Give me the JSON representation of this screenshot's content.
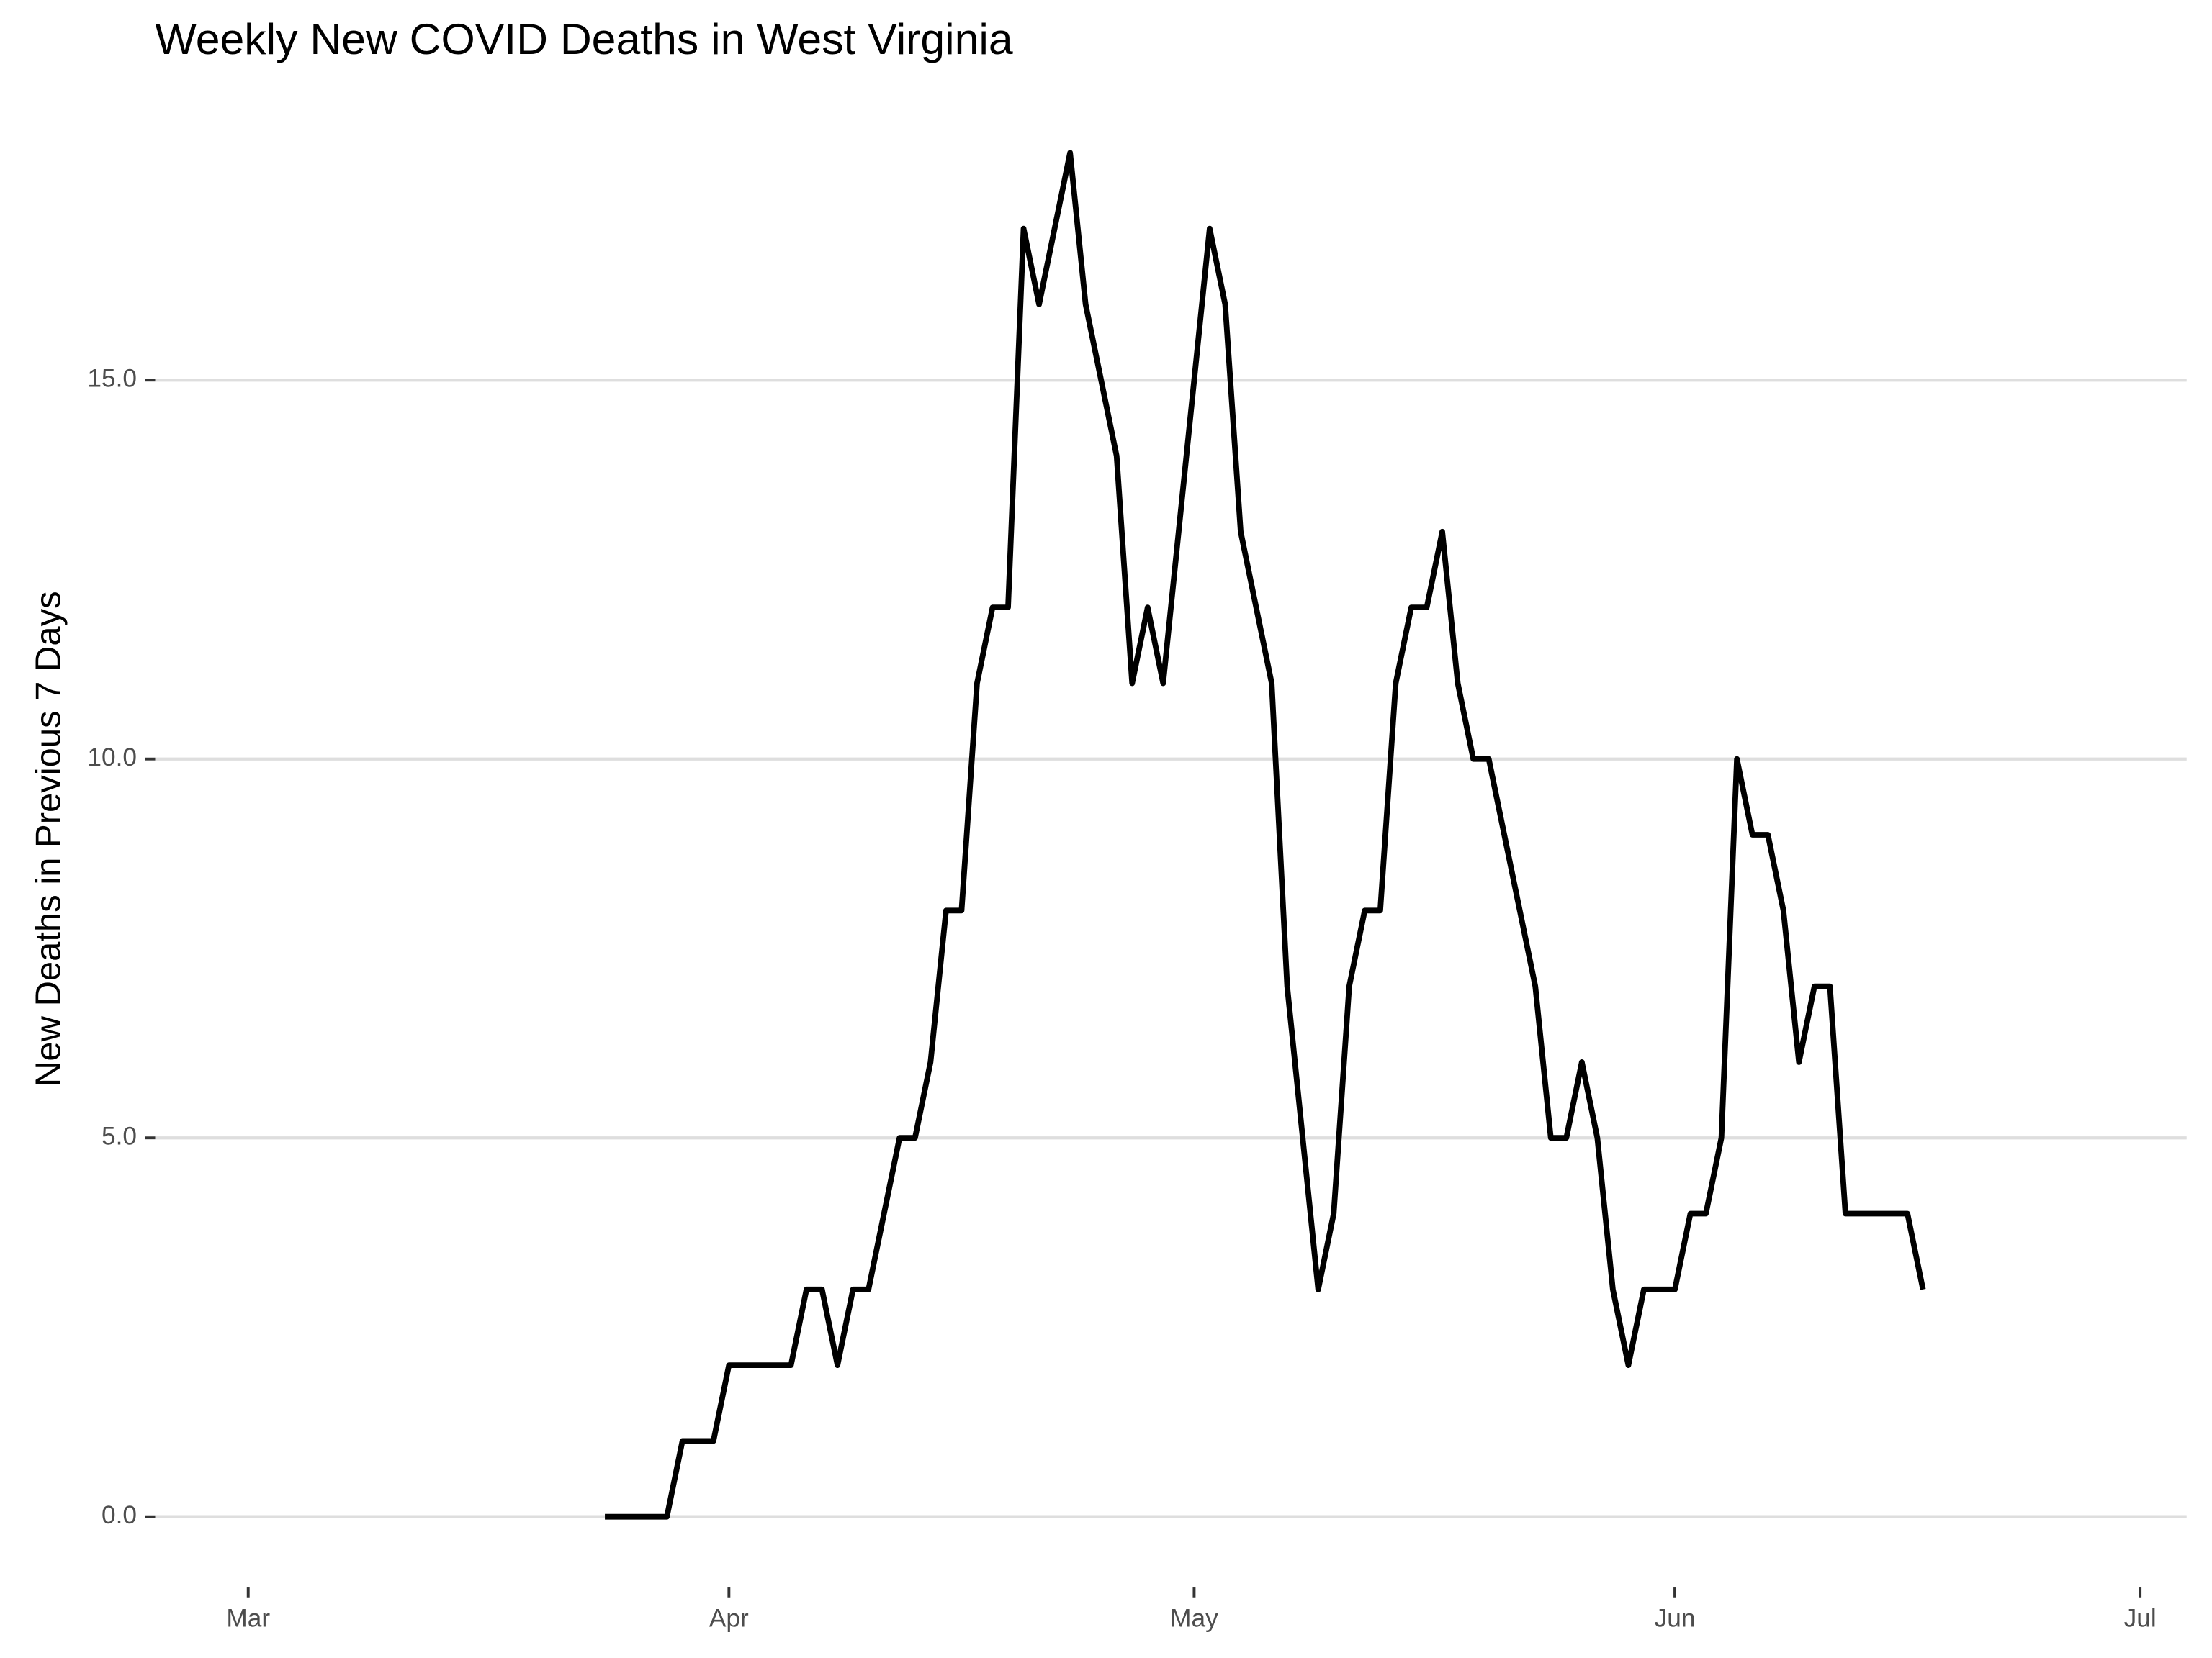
{
  "chart_data": {
    "type": "line",
    "title": "Weekly New COVID Deaths in West Virginia",
    "y_label": "New Deaths in Previous 7 Days",
    "x": [
      23,
      24,
      25,
      26,
      27,
      28,
      29,
      30,
      31,
      32,
      33,
      34,
      35,
      36,
      37,
      38,
      39,
      40,
      41,
      42,
      43,
      44,
      45,
      46,
      47,
      48,
      49,
      50,
      51,
      52,
      53,
      54,
      55,
      56,
      57,
      58,
      59,
      60,
      61,
      62,
      63,
      64,
      65,
      66,
      67,
      68,
      69,
      70,
      71,
      72,
      73,
      74,
      75,
      76,
      77,
      78,
      79,
      80,
      81,
      82,
      83,
      84,
      85,
      86,
      87,
      88,
      89,
      90,
      91,
      92,
      93,
      94,
      95,
      96,
      97,
      98,
      99,
      100,
      101,
      102,
      103,
      104,
      105,
      106,
      107,
      108
    ],
    "series": [
      {
        "color": "#000000",
        "values": [
          0,
          0,
          0,
          0,
          0,
          1,
          1,
          1,
          2,
          2,
          2,
          2,
          2,
          3,
          3,
          2,
          3,
          3,
          4,
          5,
          5,
          6,
          8,
          8,
          11,
          12,
          12,
          17,
          16,
          17,
          18,
          16,
          15,
          14,
          11,
          12,
          11,
          13,
          15,
          17,
          16,
          13,
          12,
          11,
          7,
          5,
          3,
          4,
          7,
          8,
          8,
          11,
          12,
          12,
          13,
          11,
          10,
          10,
          9,
          8,
          7,
          5,
          5,
          6,
          5,
          3,
          2,
          3,
          3,
          3,
          4,
          4,
          5,
          10,
          9,
          9,
          8,
          6,
          7,
          7,
          4,
          4,
          4,
          4,
          4,
          3
        ]
      }
    ],
    "xlim": [
      -6,
      125
    ],
    "xticks": [
      {
        "value": 0,
        "label": "Mar"
      },
      {
        "value": 31,
        "label": "Apr"
      },
      {
        "value": 61,
        "label": "May"
      },
      {
        "value": 92,
        "label": "Jun"
      },
      {
        "value": 122,
        "label": "Jul"
      }
    ],
    "ylim": [
      -0.45,
      18.9
    ],
    "yticks": [
      {
        "value": 0,
        "label": "0.0"
      },
      {
        "value": 5,
        "label": "5.0"
      },
      {
        "value": 10,
        "label": "10.0"
      },
      {
        "value": 15,
        "label": "15.0"
      }
    ],
    "grid": true
  }
}
